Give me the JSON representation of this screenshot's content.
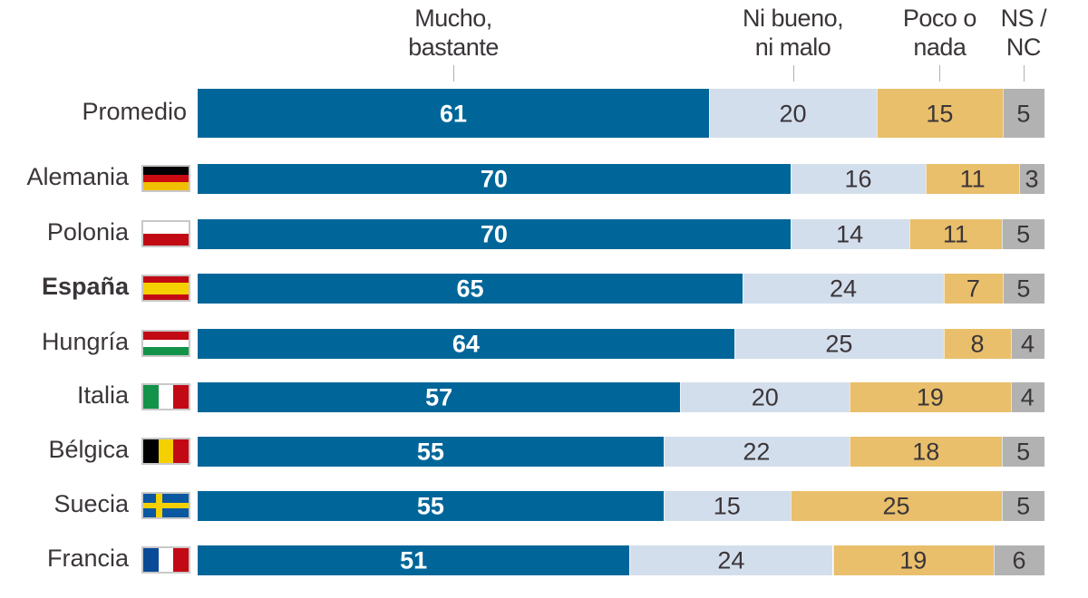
{
  "chart_data": {
    "type": "bar",
    "orientation": "horizontal-stacked-100",
    "title": "",
    "xlabel": "",
    "ylabel": "",
    "xlim": [
      0,
      100
    ],
    "unit": "%",
    "categories": [
      "Promedio",
      "Alemania",
      "Polonia",
      "España",
      "Hungría",
      "Italia",
      "Bélgica",
      "Suecia",
      "Francia"
    ],
    "highlight_category": "España",
    "series": [
      {
        "name": "Mucho, bastante",
        "header": "Mucho,\nbastante",
        "color": "#006699",
        "label_color": "#ffffff",
        "values": [
          61,
          70,
          70,
          65,
          64,
          57,
          55,
          55,
          51
        ]
      },
      {
        "name": "Ni bueno, ni malo",
        "header": "Ni bueno,\nni malo",
        "color": "#d3deec",
        "label_color": "#3a3539",
        "values": [
          20,
          16,
          14,
          24,
          25,
          20,
          22,
          15,
          24
        ]
      },
      {
        "name": "Poco o nada",
        "header": "Poco o\nnada",
        "color": "#e9bf6b",
        "label_color": "#3a3539",
        "values": [
          15,
          11,
          11,
          7,
          8,
          19,
          18,
          25,
          19
        ]
      },
      {
        "name": "NS / NC",
        "header": "NS /\nNC",
        "color": "#b2b2b2",
        "label_color": "#3a3539",
        "values": [
          5,
          3,
          5,
          5,
          4,
          4,
          5,
          5,
          6
        ]
      }
    ],
    "flags": [
      "",
      "germany-flag",
      "poland-flag",
      "spain-flag",
      "hungary-flag",
      "italy-flag",
      "belgium-flag",
      "sweden-flag",
      "france-flag"
    ],
    "legend": "top (column headers)",
    "grid": false
  }
}
